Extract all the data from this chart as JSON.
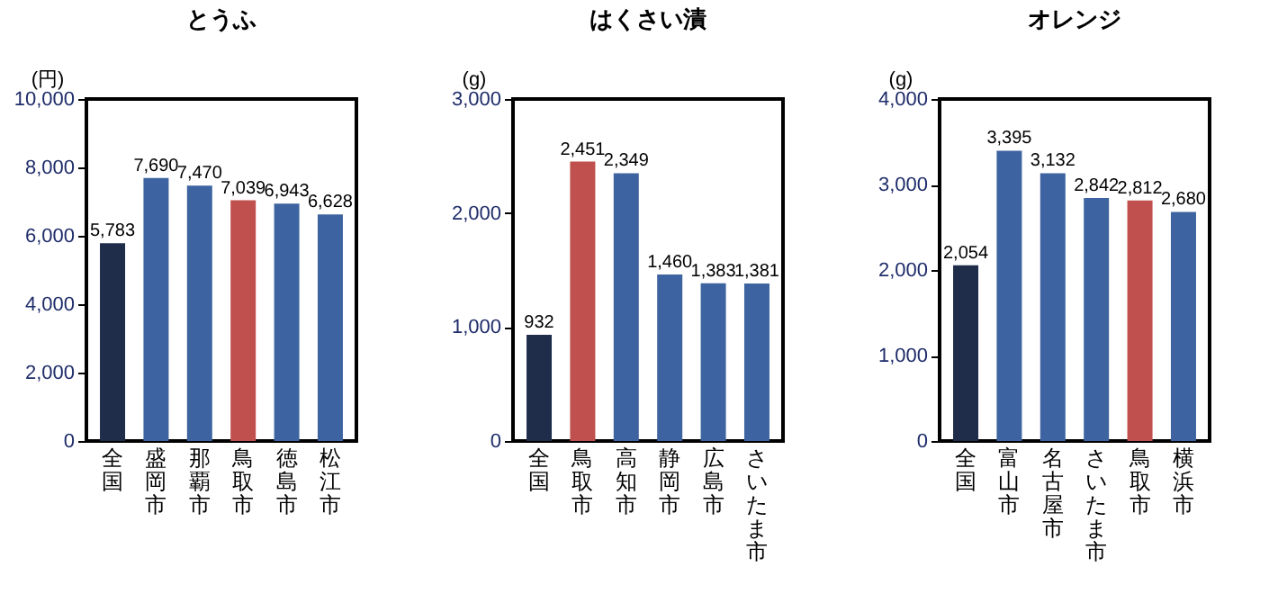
{
  "chart_data": [
    {
      "type": "bar",
      "title": "とうふ",
      "ylabel": "(円)",
      "categories": [
        "全国",
        "盛岡市",
        "那覇市",
        "鳥取市",
        "徳島市",
        "松江市"
      ],
      "values": [
        5783,
        7690,
        7470,
        7039,
        6943,
        6628
      ],
      "value_labels": [
        "5,783",
        "7,690",
        "7,470",
        "7,039",
        "6,943",
        "6,628"
      ],
      "colors": [
        "#1f2d4a",
        "#3d64a0",
        "#3d64a0",
        "#c0504d",
        "#3d64a0",
        "#3d64a0"
      ],
      "ylim": [
        0,
        10000
      ],
      "yticks": [
        {
          "value": 0,
          "label": "0"
        },
        {
          "value": 2000,
          "label": "2,000"
        },
        {
          "value": 4000,
          "label": "4,000"
        },
        {
          "value": 6000,
          "label": "6,000"
        },
        {
          "value": 8000,
          "label": "8,000"
        },
        {
          "value": 10000,
          "label": "10,000"
        }
      ],
      "grid": false
    },
    {
      "type": "bar",
      "title": "はくさい漬",
      "ylabel": "(g)",
      "categories": [
        "全国",
        "鳥取市",
        "高知市",
        "静岡市",
        "広島市",
        "さいたま市"
      ],
      "values": [
        932,
        2451,
        2349,
        1460,
        1383,
        1381
      ],
      "value_labels": [
        "932",
        "2,451",
        "2,349",
        "1,460",
        "1,383",
        "1,381"
      ],
      "colors": [
        "#1f2d4a",
        "#c0504d",
        "#3d64a0",
        "#3d64a0",
        "#3d64a0",
        "#3d64a0"
      ],
      "ylim": [
        0,
        3000
      ],
      "yticks": [
        {
          "value": 0,
          "label": "0"
        },
        {
          "value": 1000,
          "label": "1,000"
        },
        {
          "value": 2000,
          "label": "2,000"
        },
        {
          "value": 3000,
          "label": "3,000"
        }
      ],
      "grid": false
    },
    {
      "type": "bar",
      "title": "オレンジ",
      "ylabel": "(g)",
      "categories": [
        "全国",
        "富山市",
        "名古屋市",
        "さいたま市",
        "鳥取市",
        "横浜市"
      ],
      "values": [
        2054,
        3395,
        3132,
        2842,
        2812,
        2680
      ],
      "value_labels": [
        "2,054",
        "3,395",
        "3,132",
        "2,842",
        "2,812",
        "2,680"
      ],
      "colors": [
        "#1f2d4a",
        "#3d64a0",
        "#3d64a0",
        "#3d64a0",
        "#c0504d",
        "#3d64a0"
      ],
      "ylim": [
        0,
        4000
      ],
      "yticks": [
        {
          "value": 0,
          "label": "0"
        },
        {
          "value": 1000,
          "label": "1,000"
        },
        {
          "value": 2000,
          "label": "2,000"
        },
        {
          "value": 3000,
          "label": "3,000"
        },
        {
          "value": 4000,
          "label": "4,000"
        }
      ],
      "grid": false
    }
  ]
}
